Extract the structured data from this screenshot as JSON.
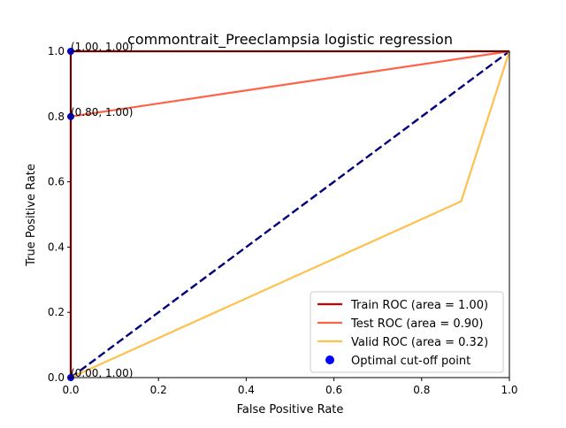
{
  "chart_data": {
    "type": "line",
    "title": "commontrait_Preeclampsia logistic regression",
    "xlabel": "False Positive Rate",
    "ylabel": "True Positive Rate",
    "xlim": [
      0.0,
      1.0
    ],
    "ylim": [
      0.0,
      1.0
    ],
    "xticks": [
      "0.0",
      "0.2",
      "0.4",
      "0.6",
      "0.8",
      "1.0"
    ],
    "yticks": [
      "0.0",
      "0.2",
      "0.4",
      "0.6",
      "0.8",
      "1.0"
    ],
    "grid": false,
    "legend_position": "lower-right",
    "series": [
      {
        "name": "Train ROC (area = 1.00)",
        "color": "#cc0000",
        "x": [
          0.0,
          0.0,
          1.0
        ],
        "y": [
          0.0,
          1.0,
          1.0
        ]
      },
      {
        "name": "Test ROC (area = 0.90)",
        "color": "#ff6347",
        "x": [
          0.0,
          0.0,
          1.0
        ],
        "y": [
          0.0,
          0.8,
          1.0
        ]
      },
      {
        "name": "Valid ROC (area = 0.32)",
        "color": "#ffc04c",
        "x": [
          0.0,
          0.89,
          1.0
        ],
        "y": [
          0.0,
          0.54,
          1.0
        ]
      }
    ],
    "reference_line": {
      "color": "#000080",
      "style": "dashed",
      "x": [
        0.0,
        1.0
      ],
      "y": [
        0.0,
        1.0
      ]
    },
    "optimal_points": {
      "name": "Optimal cut-off point",
      "color": "#0000ff",
      "points": [
        {
          "x": 0.0,
          "y": 1.0,
          "label": "(1.00, 1.00)"
        },
        {
          "x": 0.0,
          "y": 0.8,
          "label": "(0.80, 1.00)"
        },
        {
          "x": 0.0,
          "y": 0.0,
          "label": "(0.00, 1.00)"
        }
      ]
    }
  }
}
